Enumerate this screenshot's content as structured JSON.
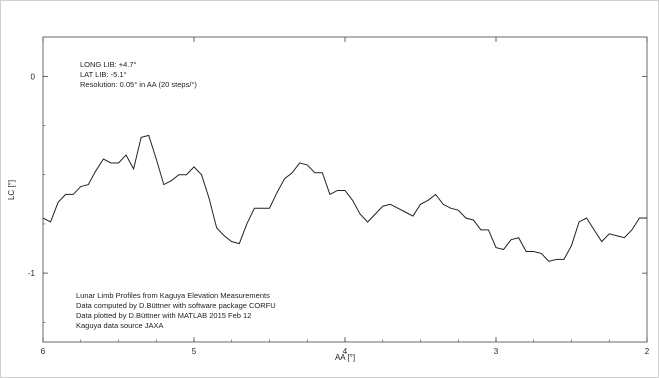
{
  "chart_data": {
    "type": "line",
    "xlabel": "AA [°]",
    "ylabel": "LC [°]",
    "xlim": [
      6,
      2
    ],
    "ylim": [
      -1.35,
      0.2
    ],
    "x_ticks": [
      "6",
      "5",
      "4",
      "3",
      "2"
    ],
    "y_ticks": [
      "0",
      "-1"
    ],
    "grid": false,
    "annotations_top": [
      "LONG LIB:  +4.7°",
      "LAT LIB:    -5.1°",
      "Resolution: 0.05° in AA (20 steps/°)"
    ],
    "annotations_bottom": [
      "Lunar Limb Profiles from Kaguya Elevation Measurements",
      "Data computed by D.Büttner with software package CORFU",
      "Data plotted by D.Büttner with MATLAB        2015 Feb 12",
      "Kaguya data source JAXA"
    ],
    "series": [
      {
        "x": [
          6.0,
          5.95,
          5.9,
          5.85,
          5.8,
          5.75,
          5.7,
          5.65,
          5.6,
          5.55,
          5.5,
          5.45,
          5.4,
          5.35,
          5.3,
          5.25,
          5.2,
          5.15,
          5.1,
          5.05,
          5.0,
          4.95,
          4.9,
          4.85,
          4.8,
          4.75,
          4.7,
          4.65,
          4.6,
          4.55,
          4.5,
          4.45,
          4.4,
          4.35,
          4.3,
          4.25,
          4.2,
          4.15,
          4.1,
          4.05,
          4.0,
          3.95,
          3.9,
          3.85,
          3.8,
          3.75,
          3.7,
          3.65,
          3.6,
          3.55,
          3.5,
          3.45,
          3.4,
          3.35,
          3.3,
          3.25,
          3.2,
          3.15,
          3.1,
          3.05,
          3.0,
          2.95,
          2.9,
          2.85,
          2.8,
          2.75,
          2.7,
          2.65,
          2.6,
          2.55,
          2.5,
          2.45,
          2.4,
          2.35,
          2.3,
          2.25,
          2.2,
          2.15,
          2.1,
          2.05,
          2.0
        ],
        "y": [
          -0.72,
          -0.74,
          -0.64,
          -0.6,
          -0.6,
          -0.56,
          -0.55,
          -0.48,
          -0.42,
          -0.44,
          -0.44,
          -0.4,
          -0.47,
          -0.31,
          -0.3,
          -0.42,
          -0.55,
          -0.53,
          -0.5,
          -0.5,
          -0.46,
          -0.5,
          -0.62,
          -0.77,
          -0.81,
          -0.84,
          -0.85,
          -0.75,
          -0.67,
          -0.67,
          -0.67,
          -0.59,
          -0.52,
          -0.49,
          -0.44,
          -0.45,
          -0.49,
          -0.49,
          -0.6,
          -0.58,
          -0.58,
          -0.63,
          -0.7,
          -0.74,
          -0.7,
          -0.66,
          -0.65,
          -0.67,
          -0.69,
          -0.71,
          -0.65,
          -0.63,
          -0.6,
          -0.65,
          -0.67,
          -0.68,
          -0.72,
          -0.73,
          -0.78,
          -0.78,
          -0.87,
          -0.88,
          -0.83,
          -0.82,
          -0.89,
          -0.89,
          -0.9,
          -0.94,
          -0.93,
          -0.93,
          -0.86,
          -0.74,
          -0.72,
          -0.78,
          -0.84,
          -0.8,
          -0.81,
          -0.82,
          -0.78,
          -0.72,
          -0.72
        ]
      }
    ]
  }
}
